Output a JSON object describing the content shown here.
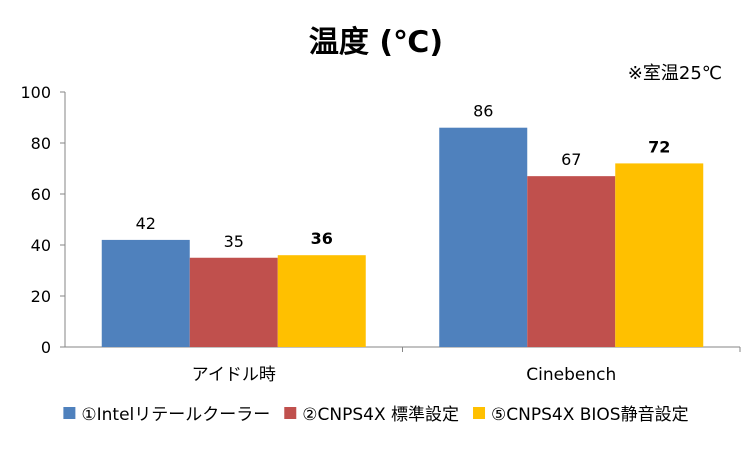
{
  "chart_data": {
    "type": "bar",
    "title": "温度 (℃)",
    "note": "※室温25℃",
    "categories": [
      "アイドル時",
      "Cinebench"
    ],
    "ylim": [
      0,
      100
    ],
    "yticks": [
      0,
      20,
      40,
      60,
      80,
      100
    ],
    "grid": false,
    "legend_position": "bottom",
    "series": [
      {
        "name": "①Intelリテールクーラー",
        "values": [
          42,
          86
        ],
        "color": "#4F81BD",
        "bold_labels": false
      },
      {
        "name": "②CNPS4X 標準設定",
        "values": [
          35,
          67
        ],
        "color": "#C0504D",
        "bold_labels": false
      },
      {
        "name": "⑤CNPS4X BIOS静音設定",
        "values": [
          36,
          72
        ],
        "color": "#FFC000",
        "bold_labels": true
      }
    ]
  }
}
